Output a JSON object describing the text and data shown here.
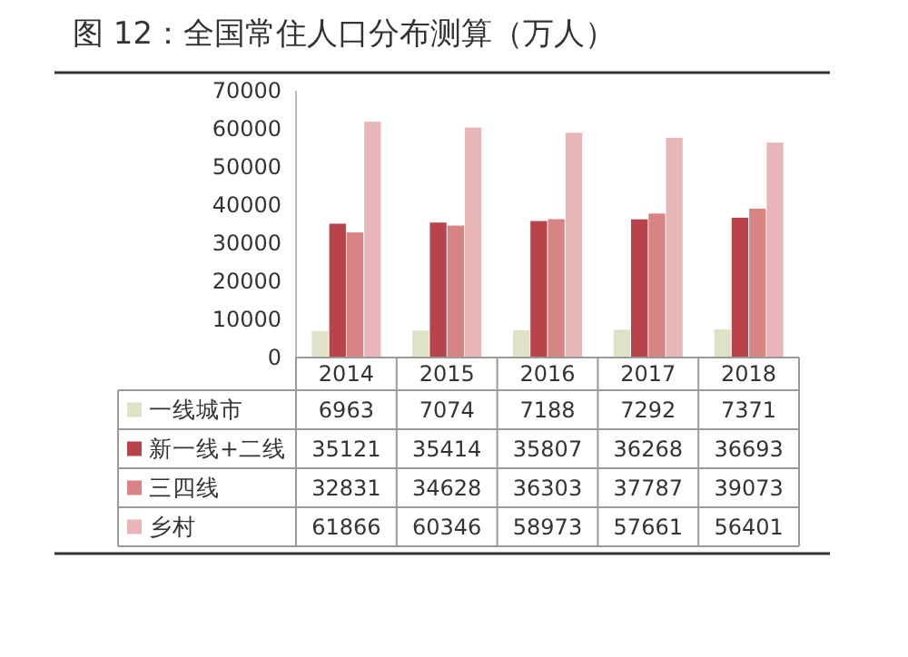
{
  "chart_data": {
    "type": "bar",
    "title": "图 12：全国常住人口分布测算（万人）",
    "categories": [
      "2014",
      "2015",
      "2016",
      "2017",
      "2018"
    ],
    "series": [
      {
        "name": "一线城市",
        "color": "#dfe2c6",
        "values": [
          6963,
          7074,
          7188,
          7292,
          7371
        ]
      },
      {
        "name": "新一线+二线",
        "color": "#b8434a",
        "values": [
          35121,
          35414,
          35807,
          36268,
          36693
        ]
      },
      {
        "name": "三四线",
        "color": "#d98484",
        "values": [
          32831,
          34628,
          36303,
          37787,
          39073
        ]
      },
      {
        "name": "乡村",
        "color": "#e8b6b9",
        "values": [
          61866,
          60346,
          58973,
          57661,
          56401
        ]
      }
    ],
    "ylim": [
      0,
      70000
    ],
    "yticks": [
      0,
      10000,
      20000,
      30000,
      40000,
      50000,
      60000,
      70000
    ],
    "grid": false,
    "legend": "bottom",
    "data_labels": true
  }
}
